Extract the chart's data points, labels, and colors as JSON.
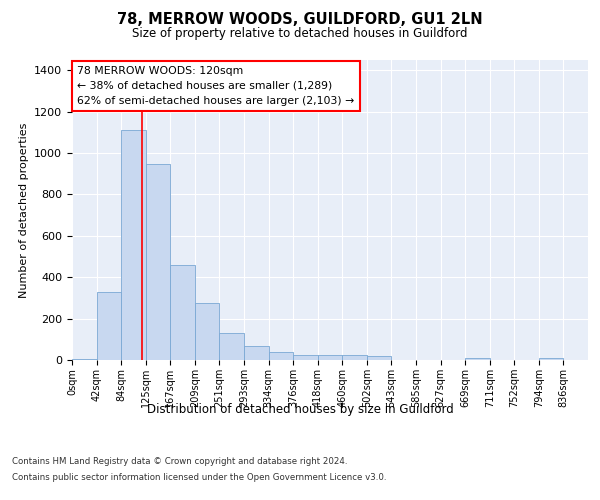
{
  "title_line1": "78, MERROW WOODS, GUILDFORD, GU1 2LN",
  "title_line2": "Size of property relative to detached houses in Guildford",
  "xlabel": "Distribution of detached houses by size in Guildford",
  "ylabel": "Number of detached properties",
  "bar_color": "#c8d8f0",
  "bar_edge_color": "#7aa8d4",
  "background_color": "#e8eef8",
  "grid_color": "#ffffff",
  "categories": [
    "0sqm",
    "42sqm",
    "84sqm",
    "125sqm",
    "167sqm",
    "209sqm",
    "251sqm",
    "293sqm",
    "334sqm",
    "376sqm",
    "418sqm",
    "460sqm",
    "502sqm",
    "543sqm",
    "585sqm",
    "627sqm",
    "669sqm",
    "711sqm",
    "752sqm",
    "794sqm",
    "836sqm"
  ],
  "values": [
    5,
    327,
    1110,
    946,
    460,
    275,
    130,
    70,
    40,
    22,
    25,
    22,
    17,
    0,
    0,
    0,
    10,
    0,
    0,
    10,
    0
  ],
  "ylim": [
    0,
    1450
  ],
  "yticks": [
    0,
    200,
    400,
    600,
    800,
    1000,
    1200,
    1400
  ],
  "annotation_text_line1": "78 MERROW WOODS: 120sqm",
  "annotation_text_line2": "← 38% of detached houses are smaller (1,289)",
  "annotation_text_line3": "62% of semi-detached houses are larger (2,103) →",
  "red_line_x": 2.85,
  "footer_line1": "Contains HM Land Registry data © Crown copyright and database right 2024.",
  "footer_line2": "Contains public sector information licensed under the Open Government Licence v3.0."
}
